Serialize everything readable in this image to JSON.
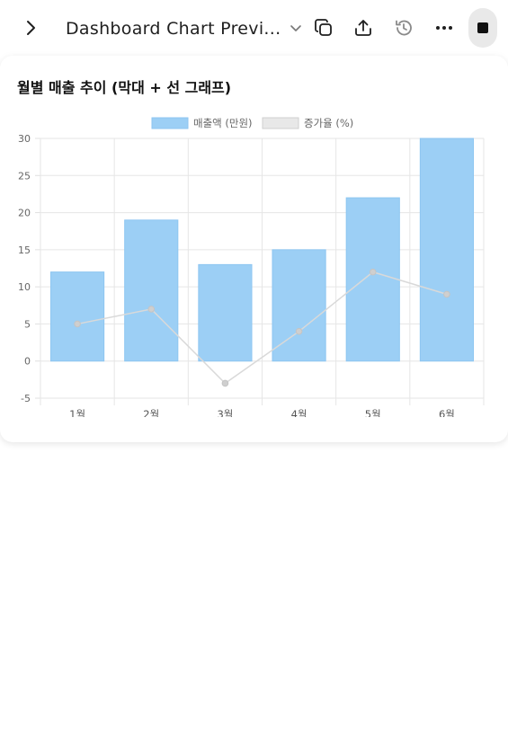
{
  "header": {
    "title": "Dashboard Chart Previ...",
    "icons": {
      "back": "chevron-right-icon",
      "title_dropdown": "chevron-down-icon",
      "copy": "copy-icon",
      "share": "share-icon",
      "history": "history-icon",
      "more": "more-icon",
      "stop": "stop-icon"
    }
  },
  "card": {
    "title": "월별 매출 추이 (막대 + 선 그래프)"
  },
  "chart_data": {
    "type": "bar",
    "categories": [
      "1월",
      "2월",
      "3월",
      "4월",
      "5월",
      "6월"
    ],
    "series": [
      {
        "name": "매출액 (만원)",
        "type": "bar",
        "values": [
          12,
          19,
          13,
          15,
          22,
          30
        ],
        "color": "#9ccff5"
      },
      {
        "name": "증가율 (%)",
        "type": "line",
        "values": [
          5,
          7,
          -3,
          4,
          12,
          9
        ],
        "color": "#dcdcdc"
      }
    ],
    "ylim": [
      -5,
      30
    ],
    "yticks": [
      30,
      25,
      20,
      15,
      10,
      5,
      0,
      -5
    ],
    "grid": true,
    "legend": "top"
  }
}
